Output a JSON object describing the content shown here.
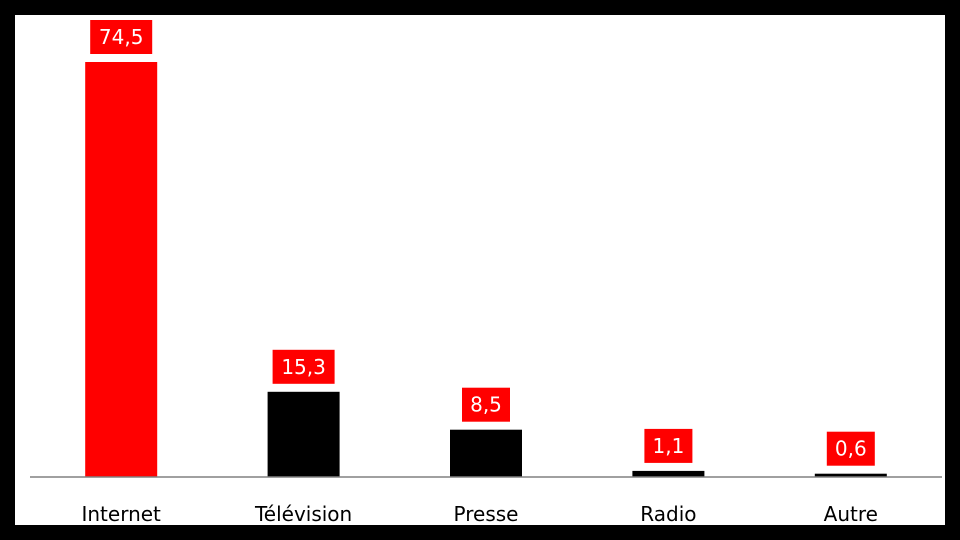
{
  "chart_data": {
    "type": "bar",
    "categories": [
      "Internet",
      "Télévision",
      "Presse",
      "Radio",
      "Autre"
    ],
    "values": [
      74.5,
      15.3,
      8.5,
      1.1,
      0.6
    ],
    "value_labels": [
      "74,5",
      "15,3",
      "8,5",
      "1,1",
      "0,6"
    ],
    "bar_colors": [
      "#ff0000",
      "#000000",
      "#000000",
      "#000000",
      "#000000"
    ],
    "label_box_color": "#ff0000",
    "ylim": [
      0,
      80
    ],
    "grid": false,
    "legend": "none"
  },
  "colors": {
    "frame": "#000000",
    "plot_background": "#ffffff",
    "axis_line": "#808080"
  }
}
